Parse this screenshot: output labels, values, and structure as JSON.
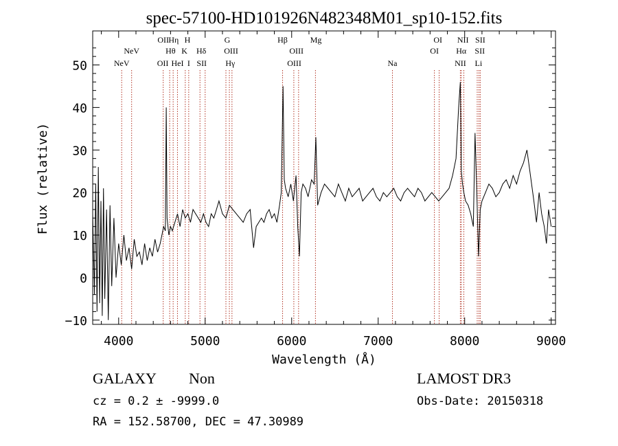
{
  "chart_data": {
    "type": "line",
    "title": "spec-57100-HD101926N482348M01_sp10-152.fits",
    "xlabel": "Wavelength (Å)",
    "ylabel": "Flux (relative)",
    "xlim": [
      3700,
      9050
    ],
    "ylim": [
      -11,
      58
    ],
    "xticks": [
      4000,
      5000,
      6000,
      7000,
      8000,
      9000
    ],
    "xtick_labels": [
      "4000",
      "5000",
      "6000",
      "7000",
      "8000",
      "9000"
    ],
    "yticks": [
      -10,
      0,
      10,
      20,
      30,
      40,
      50
    ],
    "ytick_labels": [
      "−10",
      "0",
      "10",
      "20",
      "30",
      "40",
      "50"
    ],
    "grid": false,
    "line_color": "#000000",
    "marker_color": "#b03020",
    "series": [
      {
        "x": [
          3700,
          3720,
          3735,
          3750,
          3765,
          3780,
          3795,
          3810,
          3825,
          3840,
          3860,
          3880,
          3900,
          3920,
          3945,
          3970,
          4000,
          4030,
          4060,
          4090,
          4120,
          4150,
          4180,
          4210,
          4240,
          4270,
          4300,
          4330,
          4360,
          4390,
          4420,
          4450,
          4480,
          4500,
          4520,
          4540,
          4550,
          4560,
          4580,
          4600,
          4620,
          4650,
          4680,
          4710,
          4740,
          4770,
          4800,
          4830,
          4860,
          4890,
          4920,
          4950,
          4980,
          5010,
          5040,
          5070,
          5100,
          5130,
          5160,
          5200,
          5240,
          5280,
          5320,
          5360,
          5400,
          5440,
          5480,
          5520,
          5560,
          5590,
          5620,
          5650,
          5680,
          5710,
          5740,
          5770,
          5800,
          5830,
          5860,
          5880,
          5900,
          5915,
          5930,
          5960,
          5990,
          6020,
          6050,
          6070,
          6090,
          6110,
          6130,
          6160,
          6190,
          6230,
          6260,
          6280,
          6300,
          6340,
          6380,
          6420,
          6460,
          6500,
          6540,
          6580,
          6620,
          6660,
          6700,
          6740,
          6780,
          6820,
          6860,
          6900,
          6940,
          6980,
          7020,
          7060,
          7100,
          7140,
          7180,
          7220,
          7260,
          7300,
          7340,
          7380,
          7420,
          7460,
          7500,
          7540,
          7580,
          7620,
          7660,
          7700,
          7740,
          7780,
          7820,
          7860,
          7900,
          7930,
          7950,
          7962,
          7975,
          7990,
          8010,
          8040,
          8070,
          8100,
          8120,
          8140,
          8160,
          8180,
          8200,
          8240,
          8280,
          8320,
          8360,
          8400,
          8440,
          8480,
          8520,
          8560,
          8600,
          8640,
          8680,
          8720,
          8760,
          8800,
          8830,
          8860,
          8890,
          8920,
          8945,
          8970,
          9000
        ],
        "y": [
          15,
          -4,
          22,
          -8,
          26,
          -6,
          18,
          -9,
          21,
          -5,
          16,
          -10,
          17,
          -2,
          14,
          0,
          8,
          3,
          10,
          4,
          7,
          2,
          9,
          5,
          6,
          3,
          8,
          4,
          7,
          5,
          9,
          6,
          8,
          10,
          12,
          11,
          40,
          14,
          10,
          12,
          11,
          13,
          15,
          12,
          16,
          14,
          15,
          13,
          16,
          15,
          14,
          13,
          15,
          13,
          12,
          15,
          14,
          16,
          18,
          15,
          14,
          17,
          16,
          15,
          14,
          13,
          15,
          16,
          7,
          12,
          13,
          14,
          13,
          15,
          16,
          14,
          15,
          13,
          17,
          20,
          45,
          23,
          21,
          19,
          22,
          18,
          24,
          12,
          5,
          20,
          22,
          21,
          19,
          23,
          22,
          33,
          17,
          20,
          22,
          21,
          20,
          19,
          22,
          20,
          18,
          21,
          19,
          20,
          21,
          18,
          19,
          20,
          21,
          19,
          18,
          20,
          19,
          20,
          21,
          19,
          18,
          20,
          21,
          20,
          19,
          21,
          20,
          18,
          19,
          20,
          19,
          18,
          19,
          20,
          21,
          24,
          28,
          40,
          46,
          25,
          22,
          20,
          18,
          17,
          15,
          12,
          34,
          20,
          5,
          16,
          18,
          20,
          22,
          21,
          19,
          20,
          22,
          23,
          21,
          24,
          22,
          25,
          27,
          30,
          24,
          18,
          13,
          20,
          15,
          12,
          8,
          16,
          12
        ]
      }
    ],
    "line_markers": [
      {
        "label": "NeV",
        "x": 4035,
        "row": 3
      },
      {
        "label": "NeV",
        "x": 4150,
        "row": 2
      },
      {
        "label": "OII",
        "x": 4515,
        "row": 1
      },
      {
        "label": "OII",
        "x": 4510,
        "row": 3
      },
      {
        "label": "Hη",
        "x": 4635,
        "row": 1
      },
      {
        "label": "Hθ",
        "x": 4600,
        "row": 2
      },
      {
        "label": "HeI",
        "x": 4680,
        "row": 3
      },
      {
        "label": "H",
        "x": 4795,
        "row": 1
      },
      {
        "label": "K",
        "x": 4760,
        "row": 2
      },
      {
        "label": "I",
        "x": 4810,
        "row": 3
      },
      {
        "label": "Hδ",
        "x": 4955,
        "row": 2
      },
      {
        "label": "SII",
        "x": 4960,
        "row": 3
      },
      {
        "label": "G",
        "x": 5255,
        "row": 1
      },
      {
        "label": "OIII",
        "x": 5300,
        "row": 2
      },
      {
        "label": "Hγ",
        "x": 5290,
        "row": 3
      },
      {
        "label": "Hβ",
        "x": 5895,
        "row": 1
      },
      {
        "label": "OIII",
        "x": 6055,
        "row": 2
      },
      {
        "label": "OIII",
        "x": 6030,
        "row": 3
      },
      {
        "label": "Mg",
        "x": 6280,
        "row": 1
      },
      {
        "label": "Na",
        "x": 7165,
        "row": 3
      },
      {
        "label": "OI",
        "x": 7690,
        "row": 1
      },
      {
        "label": "OI",
        "x": 7650,
        "row": 2
      },
      {
        "label": "NII",
        "x": 7980,
        "row": 1
      },
      {
        "label": "Hα",
        "x": 7960,
        "row": 2
      },
      {
        "label": "NII",
        "x": 7950,
        "row": 3
      },
      {
        "label": "SII",
        "x": 8180,
        "row": 1
      },
      {
        "label": "SII",
        "x": 8175,
        "row": 2
      },
      {
        "label": "Li",
        "x": 8160,
        "row": 3
      }
    ],
    "marker_lines_x": [
      4035,
      4150,
      4515,
      4590,
      4630,
      4680,
      4770,
      4810,
      4940,
      5000,
      5240,
      5280,
      5310,
      5895,
      6025,
      6080,
      6275,
      7165,
      7650,
      7705,
      7950,
      7962,
      7990,
      8145,
      8165,
      8180
    ]
  },
  "footer": {
    "object_class": "GALAXY",
    "subclass": "Non",
    "cz_line": "cz = 0.2 ± -9999.0",
    "radec_line": "RA = 152.58700, DEC =  47.30989",
    "survey": "LAMOST DR3",
    "obs_date": "Obs-Date: 20150318"
  }
}
